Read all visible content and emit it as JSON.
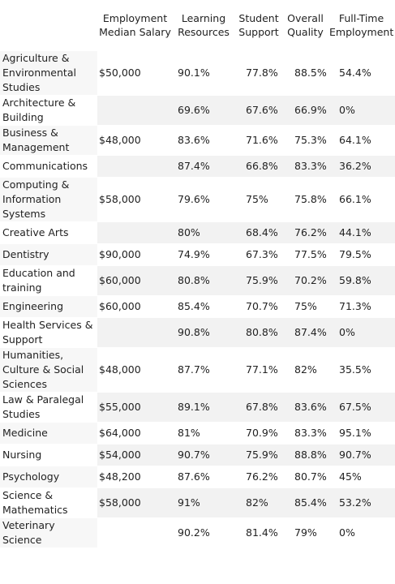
{
  "table": {
    "headers": [
      "",
      "Employment Median Salary",
      "Learning Resources",
      "Student Support",
      "Overall Quality",
      "Full-Time Employment"
    ],
    "rows": [
      {
        "category": "Agriculture & Environmental Studies",
        "salary": "$50,000",
        "learning": "90.1%",
        "support": "77.8%",
        "quality": "88.5%",
        "employment": "54.4%"
      },
      {
        "category": "Architecture & Building",
        "salary": "",
        "learning": "69.6%",
        "support": "67.6%",
        "quality": "66.9%",
        "employment": "0%"
      },
      {
        "category": "Business & Management",
        "salary": "$48,000",
        "learning": "83.6%",
        "support": "71.6%",
        "quality": "75.3%",
        "employment": "64.1%"
      },
      {
        "category": "Communications",
        "salary": "",
        "learning": "87.4%",
        "support": "66.8%",
        "quality": "83.3%",
        "employment": "36.2%"
      },
      {
        "category": "Computing & Information Systems",
        "salary": "$58,000",
        "learning": "79.6%",
        "support": "75%",
        "quality": "75.8%",
        "employment": "66.1%"
      },
      {
        "category": "Creative Arts",
        "salary": "",
        "learning": "80%",
        "support": "68.4%",
        "quality": "76.2%",
        "employment": "44.1%"
      },
      {
        "category": "Dentistry",
        "salary": "$90,000",
        "learning": "74.9%",
        "support": "67.3%",
        "quality": "77.5%",
        "employment": "79.5%"
      },
      {
        "category": "Education and training",
        "salary": "$60,000",
        "learning": "80.8%",
        "support": "75.9%",
        "quality": "70.2%",
        "employment": "59.8%"
      },
      {
        "category": "Engineering",
        "salary": "$60,000",
        "learning": "85.4%",
        "support": "70.7%",
        "quality": "75%",
        "employment": "71.3%"
      },
      {
        "category": "Health Services & Support",
        "salary": "",
        "learning": "90.8%",
        "support": "80.8%",
        "quality": "87.4%",
        "employment": "0%"
      },
      {
        "category": "Humanities, Culture & Social Sciences",
        "salary": "$48,000",
        "learning": "87.7%",
        "support": "77.1%",
        "quality": "82%",
        "employment": "35.5%"
      },
      {
        "category": "Law & Paralegal Studies",
        "salary": "$55,000",
        "learning": "89.1%",
        "support": "67.8%",
        "quality": "83.6%",
        "employment": "67.5%"
      },
      {
        "category": "Medicine",
        "salary": "$64,000",
        "learning": "81%",
        "support": "70.9%",
        "quality": "83.3%",
        "employment": "95.1%"
      },
      {
        "category": "Nursing",
        "salary": "$54,000",
        "learning": "90.7%",
        "support": "75.9%",
        "quality": "88.8%",
        "employment": "90.7%"
      },
      {
        "category": "Psychology",
        "salary": "$48,200",
        "learning": "87.6%",
        "support": "76.2%",
        "quality": "80.7%",
        "employment": "45%"
      },
      {
        "category": "Science & Mathematics",
        "salary": "$58,000",
        "learning": "91%",
        "support": "82%",
        "quality": "85.4%",
        "employment": "53.2%"
      },
      {
        "category": "Veterinary Science",
        "salary": "",
        "learning": "90.2%",
        "support": "81.4%",
        "quality": "79%",
        "employment": "0%"
      }
    ]
  }
}
